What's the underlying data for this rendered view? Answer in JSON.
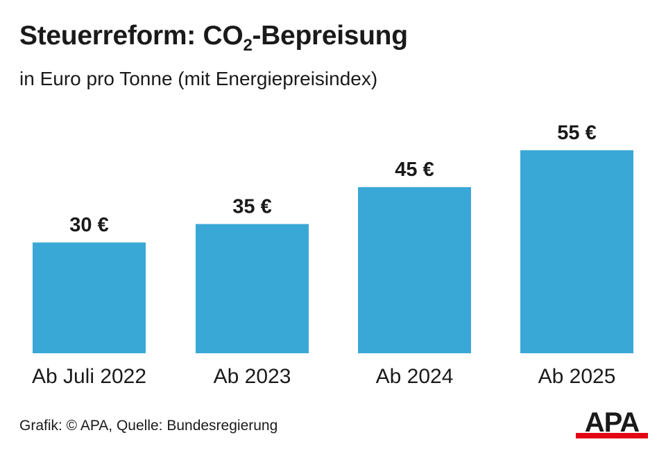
{
  "title": {
    "main": "Steuerreform: CO",
    "sub": "2",
    "rest": "-Bepreisung"
  },
  "subtitle": "in Euro pro Tonne (mit Energiepreisindex)",
  "source": "Grafik: © APA, Quelle: Bundesregierung",
  "logo": {
    "text": "APA",
    "color": "#1a1a1a",
    "accent": "#e30613"
  },
  "colors": {
    "bar": "#3aa8d6",
    "text": "#1a1a1a"
  },
  "chart_data": {
    "type": "bar",
    "title": "Steuerreform: CO2-Bepreisung",
    "subtitle": "in Euro pro Tonne (mit Energiepreisindex)",
    "categories": [
      "Ab Juli 2022",
      "Ab 2023",
      "Ab 2024",
      "Ab 2025"
    ],
    "values": [
      30,
      35,
      45,
      55
    ],
    "data_labels": [
      "30 €",
      "35 €",
      "45 €",
      "55 €"
    ],
    "unit": "€",
    "xlabel": "",
    "ylabel": "",
    "ylim": [
      0,
      55
    ],
    "grid": false,
    "legend": "none"
  }
}
